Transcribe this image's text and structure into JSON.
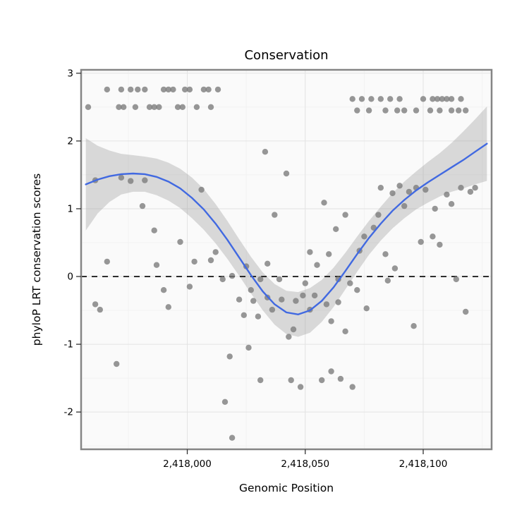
{
  "title": "Conservation",
  "x_axis": {
    "label": "Genomic Position",
    "range": [
      2417955,
      2418129
    ],
    "ticks": [
      {
        "value": 2418000,
        "label": "2,418,000"
      },
      {
        "value": 2418050,
        "label": "2,418,050"
      },
      {
        "value": 2418100,
        "label": "2,418,100"
      }
    ],
    "minor_ticks": [
      2417975,
      2418025,
      2418075,
      2418125
    ]
  },
  "y_axis": {
    "label": "phyloP LRT conservation scores",
    "range": [
      -2.55,
      3.05
    ],
    "ticks": [
      {
        "value": 3,
        "label": "3"
      },
      {
        "value": 2,
        "label": "2"
      },
      {
        "value": 1,
        "label": "1"
      },
      {
        "value": 0,
        "label": "0"
      },
      {
        "value": -1,
        "label": "-1"
      },
      {
        "value": -2,
        "label": "-2"
      }
    ],
    "minor_ticks": [
      -2.5,
      -1.5,
      -0.5,
      0.5,
      1.5,
      2.5
    ]
  },
  "colors": {
    "point": "#7a7a7a",
    "smooth_line": "#4169e1",
    "band": "#999999",
    "zero_line": "#000000",
    "panel_border": "#858585",
    "grid_major": "#e3e3e3",
    "grid_minor": "#f2f2f2",
    "panel_bg": "#fafafa"
  },
  "chart_data": {
    "type": "scatter",
    "title": "Conservation",
    "xlabel": "Genomic Position",
    "ylabel": "phyloP LRT conservation scores",
    "xlim": [
      2417955,
      2418129
    ],
    "ylim": [
      -2.55,
      3.05
    ],
    "reference_line_y": 0,
    "points": [
      [
        2417966,
        2.76
      ],
      [
        2417972,
        2.76
      ],
      [
        2417976,
        2.76
      ],
      [
        2417979,
        2.76
      ],
      [
        2417982,
        2.76
      ],
      [
        2417990,
        2.76
      ],
      [
        2417992,
        2.76
      ],
      [
        2417994,
        2.76
      ],
      [
        2417999,
        2.76
      ],
      [
        2418001,
        2.76
      ],
      [
        2418007,
        2.76
      ],
      [
        2418009,
        2.76
      ],
      [
        2418013,
        2.76
      ],
      [
        2417958,
        2.5
      ],
      [
        2417971,
        2.5
      ],
      [
        2417973,
        2.5
      ],
      [
        2417978,
        2.5
      ],
      [
        2417984,
        2.5
      ],
      [
        2417986,
        2.5
      ],
      [
        2417988,
        2.5
      ],
      [
        2417996,
        2.5
      ],
      [
        2417998,
        2.5
      ],
      [
        2418004,
        2.5
      ],
      [
        2418010,
        2.5
      ],
      [
        2418070,
        2.62
      ],
      [
        2418074,
        2.62
      ],
      [
        2418078,
        2.62
      ],
      [
        2418082,
        2.62
      ],
      [
        2418086,
        2.62
      ],
      [
        2418090,
        2.62
      ],
      [
        2418100,
        2.62
      ],
      [
        2418104,
        2.62
      ],
      [
        2418106,
        2.62
      ],
      [
        2418108,
        2.62
      ],
      [
        2418110,
        2.62
      ],
      [
        2418112,
        2.62
      ],
      [
        2418116,
        2.62
      ],
      [
        2418072,
        2.45
      ],
      [
        2418077,
        2.45
      ],
      [
        2418084,
        2.45
      ],
      [
        2418089,
        2.45
      ],
      [
        2418092,
        2.45
      ],
      [
        2418097,
        2.45
      ],
      [
        2418103,
        2.45
      ],
      [
        2418107,
        2.45
      ],
      [
        2418112,
        2.45
      ],
      [
        2418115,
        2.45
      ],
      [
        2418118,
        2.45
      ],
      [
        2417961,
        -0.41
      ],
      [
        2417963,
        -0.49
      ],
      [
        2417961,
        1.42
      ],
      [
        2417966,
        0.22
      ],
      [
        2417970,
        -1.29
      ],
      [
        2417972,
        1.46
      ],
      [
        2417976,
        1.41
      ],
      [
        2417981,
        1.04
      ],
      [
        2417982,
        1.42
      ],
      [
        2417986,
        0.68
      ],
      [
        2417987,
        0.17
      ],
      [
        2417990,
        -0.2
      ],
      [
        2417992,
        -0.45
      ],
      [
        2417997,
        0.51
      ],
      [
        2418001,
        -0.15
      ],
      [
        2418003,
        0.22
      ],
      [
        2418006,
        1.28
      ],
      [
        2418010,
        0.24
      ],
      [
        2418012,
        0.36
      ],
      [
        2418015,
        -0.04
      ],
      [
        2418016,
        -1.85
      ],
      [
        2418018,
        -1.18
      ],
      [
        2418019,
        0.01
      ],
      [
        2418019,
        -2.38
      ],
      [
        2418022,
        -0.34
      ],
      [
        2418024,
        -0.57
      ],
      [
        2418025,
        0.15
      ],
      [
        2418026,
        -1.05
      ],
      [
        2418027,
        -0.2
      ],
      [
        2418028,
        -0.36
      ],
      [
        2418030,
        -0.59
      ],
      [
        2418031,
        -0.04
      ],
      [
        2418031,
        -1.53
      ],
      [
        2418033,
        1.84
      ],
      [
        2418034,
        0.19
      ],
      [
        2418034,
        -0.31
      ],
      [
        2418036,
        -0.49
      ],
      [
        2418037,
        0.91
      ],
      [
        2418039,
        -0.04
      ],
      [
        2418040,
        -0.34
      ],
      [
        2418042,
        1.52
      ],
      [
        2418043,
        -0.89
      ],
      [
        2418044,
        -1.53
      ],
      [
        2418045,
        -0.78
      ],
      [
        2418046,
        -0.36
      ],
      [
        2418048,
        -1.63
      ],
      [
        2418049,
        -0.28
      ],
      [
        2418050,
        -0.1
      ],
      [
        2418052,
        0.36
      ],
      [
        2418052,
        -0.49
      ],
      [
        2418054,
        -0.28
      ],
      [
        2418055,
        0.17
      ],
      [
        2418057,
        -1.53
      ],
      [
        2418058,
        1.09
      ],
      [
        2418059,
        -0.41
      ],
      [
        2418060,
        0.33
      ],
      [
        2418061,
        -0.66
      ],
      [
        2418061,
        -1.4
      ],
      [
        2418063,
        0.7
      ],
      [
        2418064,
        -0.04
      ],
      [
        2418064,
        -0.38
      ],
      [
        2418065,
        -1.51
      ],
      [
        2418067,
        0.91
      ],
      [
        2418067,
        -0.81
      ],
      [
        2418069,
        -0.1
      ],
      [
        2418070,
        -1.63
      ],
      [
        2418072,
        -0.2
      ],
      [
        2418073,
        0.38
      ],
      [
        2418075,
        0.59
      ],
      [
        2418076,
        -0.47
      ],
      [
        2418079,
        0.72
      ],
      [
        2418081,
        0.91
      ],
      [
        2418082,
        1.31
      ],
      [
        2418084,
        0.33
      ],
      [
        2418085,
        -0.06
      ],
      [
        2418087,
        1.23
      ],
      [
        2418088,
        0.12
      ],
      [
        2418090,
        1.34
      ],
      [
        2418092,
        1.04
      ],
      [
        2418094,
        1.25
      ],
      [
        2418096,
        -0.73
      ],
      [
        2418097,
        1.31
      ],
      [
        2418099,
        0.51
      ],
      [
        2418101,
        1.28
      ],
      [
        2418104,
        0.59
      ],
      [
        2418105,
        1.0
      ],
      [
        2418107,
        0.47
      ],
      [
        2418110,
        1.21
      ],
      [
        2418112,
        1.07
      ],
      [
        2418114,
        -0.04
      ],
      [
        2418116,
        1.31
      ],
      [
        2418118,
        -0.52
      ],
      [
        2418120,
        1.25
      ],
      [
        2418122,
        1.31
      ]
    ],
    "smooth": {
      "x": [
        2417957,
        2417962,
        2417967,
        2417972,
        2417977,
        2417982,
        2417987,
        2417992,
        2417997,
        2418002,
        2418007,
        2418012,
        2418017,
        2418022,
        2418027,
        2418032,
        2418037,
        2418042,
        2418047,
        2418052,
        2418057,
        2418062,
        2418067,
        2418072,
        2418077,
        2418082,
        2418087,
        2418092,
        2418097,
        2418102,
        2418107,
        2418112,
        2418117,
        2418122,
        2418127
      ],
      "y": [
        1.36,
        1.43,
        1.48,
        1.51,
        1.52,
        1.51,
        1.47,
        1.4,
        1.3,
        1.16,
        0.99,
        0.78,
        0.54,
        0.28,
        0.02,
        -0.22,
        -0.41,
        -0.53,
        -0.56,
        -0.5,
        -0.36,
        -0.16,
        0.08,
        0.33,
        0.57,
        0.78,
        0.97,
        1.13,
        1.27,
        1.39,
        1.5,
        1.61,
        1.72,
        1.84,
        1.96
      ],
      "halfwidth": [
        0.68,
        0.5,
        0.38,
        0.3,
        0.27,
        0.26,
        0.27,
        0.28,
        0.29,
        0.3,
        0.3,
        0.29,
        0.28,
        0.27,
        0.27,
        0.28,
        0.3,
        0.32,
        0.33,
        0.33,
        0.31,
        0.29,
        0.27,
        0.26,
        0.25,
        0.25,
        0.26,
        0.27,
        0.28,
        0.3,
        0.32,
        0.36,
        0.42,
        0.48,
        0.55
      ]
    }
  }
}
